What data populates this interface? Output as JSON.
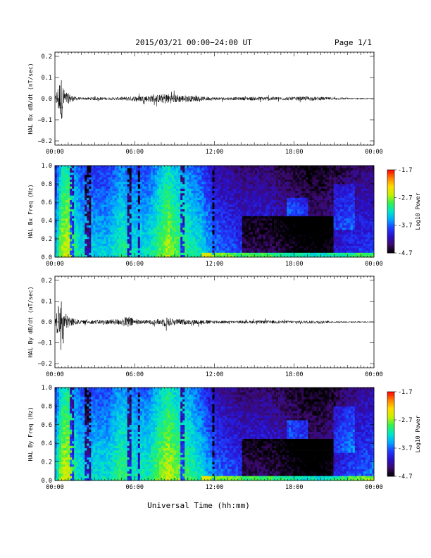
{
  "header": {
    "title": "2015/03/21  00:00−24:00 UT",
    "page": "Page 1/1"
  },
  "footer": {
    "xlabel": "Universal Time (hh:mm)"
  },
  "colors": {
    "trace": "#000000",
    "colormap": [
      "#000000",
      "#3c0a6a",
      "#2a0fc8",
      "#1e3cff",
      "#00a8ff",
      "#00e6c8",
      "#32f050",
      "#c8f000",
      "#ffdc00",
      "#ff8000",
      "#ff0000"
    ]
  },
  "chart_data": [
    {
      "type": "line",
      "ylabel": "HAL Bx dB/dt (nT/sec)",
      "xlim": [
        "00:00",
        "24:00"
      ],
      "x_ticks": [
        "00:00",
        "06:00",
        "12:00",
        "18:00",
        "00:00"
      ],
      "ylim": [
        -0.22,
        0.22
      ],
      "y_ticks": [
        "0.2",
        "0.1",
        "0.0",
        "−0.1",
        "−0.2"
      ],
      "y_tick_values": [
        0.2,
        0.1,
        0.0,
        -0.1,
        -0.2
      ],
      "series": [
        {
          "hours": [
            0,
            0.3,
            0.5,
            0.7,
            1.0,
            1.5,
            2,
            3,
            4,
            5,
            5.5,
            6,
            7,
            8,
            8.3,
            9,
            10,
            11,
            12,
            13,
            14,
            15,
            16,
            17,
            18,
            19,
            20,
            21,
            22,
            23,
            24
          ],
          "envelope": [
            0.005,
            0.08,
            0.1,
            0.04,
            0.025,
            0.01,
            0.005,
            0.008,
            0.006,
            0.008,
            0.01,
            0.012,
            0.015,
            0.02,
            0.025,
            0.02,
            0.015,
            0.01,
            0.008,
            0.007,
            0.007,
            0.009,
            0.01,
            0.008,
            0.008,
            0.01,
            0.008,
            0.006,
            0.004,
            0.003,
            0.002
          ]
        }
      ]
    },
    {
      "type": "heatmap",
      "ylabel": "HAL Bx Freq (Hz)",
      "xlim": [
        "00:00",
        "24:00"
      ],
      "x_ticks": [
        "00:00",
        "06:00",
        "12:00",
        "18:00",
        "00:00"
      ],
      "ylim": [
        0.0,
        1.0
      ],
      "y_ticks": [
        "1.0",
        "0.8",
        "0.6",
        "0.4",
        "0.2",
        "0.0"
      ],
      "y_tick_values": [
        1.0,
        0.8,
        0.6,
        0.4,
        0.2,
        0.0
      ],
      "colorbar": {
        "label": "Log10 Power",
        "range": [
          -4.7,
          -1.7
        ],
        "ticks": [
          "-1.7",
          "-2.7",
          "-3.7",
          "-4.7"
        ],
        "tick_values": [
          -1.7,
          -2.7,
          -3.7,
          -4.7
        ]
      },
      "activity_hours": [
        0,
        0.5,
        1,
        1.5,
        2,
        3,
        4,
        5,
        6,
        7,
        8,
        8.5,
        9,
        10,
        11,
        12,
        13,
        14,
        15,
        16,
        17,
        18,
        19,
        20,
        21,
        22,
        23,
        24
      ],
      "activity_level": [
        -3.5,
        -2.6,
        -2.5,
        -3.0,
        -3.2,
        -3.3,
        -3.3,
        -3.0,
        -3.2,
        -3.2,
        -2.8,
        -2.6,
        -2.8,
        -3.0,
        -3.2,
        -3.6,
        -3.7,
        -3.8,
        -3.8,
        -3.8,
        -3.9,
        -4.0,
        -4.1,
        -4.1,
        -4.0,
        -3.9,
        -3.8,
        -3.8
      ]
    },
    {
      "type": "line",
      "ylabel": "HAL By dB/dt (nT/sec)",
      "xlim": [
        "00:00",
        "24:00"
      ],
      "x_ticks": [
        "00:00",
        "06:00",
        "12:00",
        "18:00",
        "00:00"
      ],
      "ylim": [
        -0.22,
        0.22
      ],
      "y_ticks": [
        "0.2",
        "0.1",
        "0.0",
        "−0.1",
        "−0.2"
      ],
      "y_tick_values": [
        0.2,
        0.1,
        0.0,
        -0.1,
        -0.2
      ],
      "series": [
        {
          "hours": [
            0,
            0.3,
            0.5,
            0.7,
            1.0,
            1.5,
            2,
            3,
            4,
            5,
            5.5,
            6,
            7,
            8,
            8.3,
            9,
            10,
            11,
            12,
            13,
            14,
            15,
            16,
            17,
            18,
            19,
            20,
            21,
            22,
            23,
            24
          ],
          "envelope": [
            0.005,
            0.09,
            0.1,
            0.05,
            0.03,
            0.015,
            0.008,
            0.01,
            0.012,
            0.015,
            0.03,
            0.012,
            0.01,
            0.015,
            0.025,
            0.015,
            0.012,
            0.01,
            0.008,
            0.006,
            0.006,
            0.007,
            0.008,
            0.007,
            0.006,
            0.007,
            0.006,
            0.004,
            0.003,
            0.003,
            0.002
          ]
        }
      ]
    },
    {
      "type": "heatmap",
      "ylabel": "HAL By Freq (Hz)",
      "xlim": [
        "00:00",
        "24:00"
      ],
      "x_ticks": [
        "00:00",
        "06:00",
        "12:00",
        "18:00",
        "00:00"
      ],
      "ylim": [
        0.0,
        1.0
      ],
      "y_ticks": [
        "1.0",
        "0.8",
        "0.6",
        "0.4",
        "0.2",
        "0.0"
      ],
      "y_tick_values": [
        1.0,
        0.8,
        0.6,
        0.4,
        0.2,
        0.0
      ],
      "colorbar": {
        "label": "Log10 Power",
        "range": [
          -4.7,
          -1.7
        ],
        "ticks": [
          "-1.7",
          "-2.7",
          "-3.7",
          "-4.7"
        ],
        "tick_values": [
          -1.7,
          -2.7,
          -3.7,
          -4.7
        ]
      },
      "activity_hours": [
        0,
        0.5,
        1,
        1.5,
        2,
        3,
        4,
        5,
        6,
        7,
        8,
        8.5,
        9,
        10,
        11,
        12,
        13,
        14,
        15,
        16,
        17,
        18,
        19,
        20,
        21,
        22,
        23,
        24
      ],
      "activity_level": [
        -3.4,
        -2.6,
        -2.5,
        -3.0,
        -3.2,
        -3.2,
        -3.2,
        -2.9,
        -3.1,
        -3.1,
        -2.7,
        -2.5,
        -2.7,
        -2.9,
        -3.2,
        -3.6,
        -3.7,
        -3.8,
        -3.8,
        -3.8,
        -3.9,
        -4.0,
        -4.1,
        -4.1,
        -4.0,
        -3.8,
        -3.7,
        -3.6
      ]
    }
  ]
}
